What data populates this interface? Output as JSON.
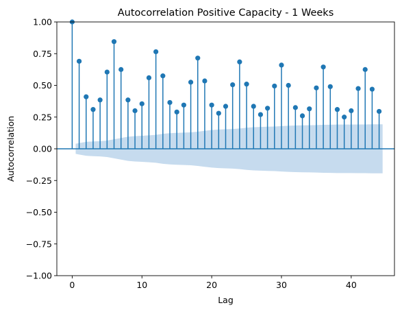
{
  "chart_data": {
    "type": "stem",
    "title": "Autocorrelation Positive Capacity - 1 Weeks",
    "xlabel": "Lag",
    "ylabel": "Autocorrelation",
    "xlim": [
      -2.2,
      46.2
    ],
    "ylim": [
      -1.0,
      1.0
    ],
    "xticks": [
      0,
      10,
      20,
      30,
      40
    ],
    "xtick_labels": [
      "0",
      "10",
      "20",
      "30",
      "40"
    ],
    "yticks": [
      -1.0,
      -0.75,
      -0.5,
      -0.25,
      0.0,
      0.25,
      0.5,
      0.75,
      1.0
    ],
    "ytick_labels": [
      "−1.00",
      "−0.75",
      "−0.50",
      "−0.25",
      "0.00",
      "0.25",
      "0.50",
      "0.75",
      "1.00"
    ],
    "grid": false,
    "color": "#1f77b4",
    "band_color": "#c6dbee",
    "lags": [
      0,
      1,
      2,
      3,
      4,
      5,
      6,
      7,
      8,
      9,
      10,
      11,
      12,
      13,
      14,
      15,
      16,
      17,
      18,
      19,
      20,
      21,
      22,
      23,
      24,
      25,
      26,
      27,
      28,
      29,
      30,
      31,
      32,
      33,
      34,
      35,
      36,
      37,
      38,
      39,
      40,
      41,
      42,
      43,
      44
    ],
    "values": [
      1.0,
      0.69,
      0.41,
      0.31,
      0.385,
      0.605,
      0.845,
      0.625,
      0.385,
      0.3,
      0.355,
      0.56,
      0.765,
      0.575,
      0.365,
      0.29,
      0.345,
      0.525,
      0.715,
      0.535,
      0.345,
      0.28,
      0.335,
      0.505,
      0.685,
      0.51,
      0.335,
      0.27,
      0.32,
      0.495,
      0.66,
      0.5,
      0.325,
      0.26,
      0.315,
      0.48,
      0.645,
      0.49,
      0.31,
      0.25,
      0.3,
      0.475,
      0.625,
      0.47,
      0.295
    ],
    "confint_lags": [
      0.5,
      1,
      2,
      3,
      4,
      5,
      6,
      7,
      8,
      9,
      10,
      11,
      12,
      13,
      14,
      15,
      16,
      17,
      18,
      19,
      20,
      21,
      22,
      23,
      24,
      25,
      26,
      27,
      28,
      29,
      30,
      31,
      32,
      33,
      34,
      35,
      36,
      37,
      38,
      39,
      40,
      41,
      42,
      43,
      44,
      44.5
    ],
    "confint_upper": [
      0.04,
      0.045,
      0.055,
      0.058,
      0.06,
      0.065,
      0.075,
      0.085,
      0.095,
      0.1,
      0.103,
      0.106,
      0.11,
      0.118,
      0.123,
      0.126,
      0.128,
      0.13,
      0.135,
      0.142,
      0.148,
      0.152,
      0.154,
      0.156,
      0.16,
      0.166,
      0.17,
      0.172,
      0.174,
      0.176,
      0.179,
      0.182,
      0.184,
      0.185,
      0.186,
      0.187,
      0.189,
      0.19,
      0.191,
      0.191,
      0.191,
      0.192,
      0.192,
      0.193,
      0.193,
      0.193
    ]
  }
}
